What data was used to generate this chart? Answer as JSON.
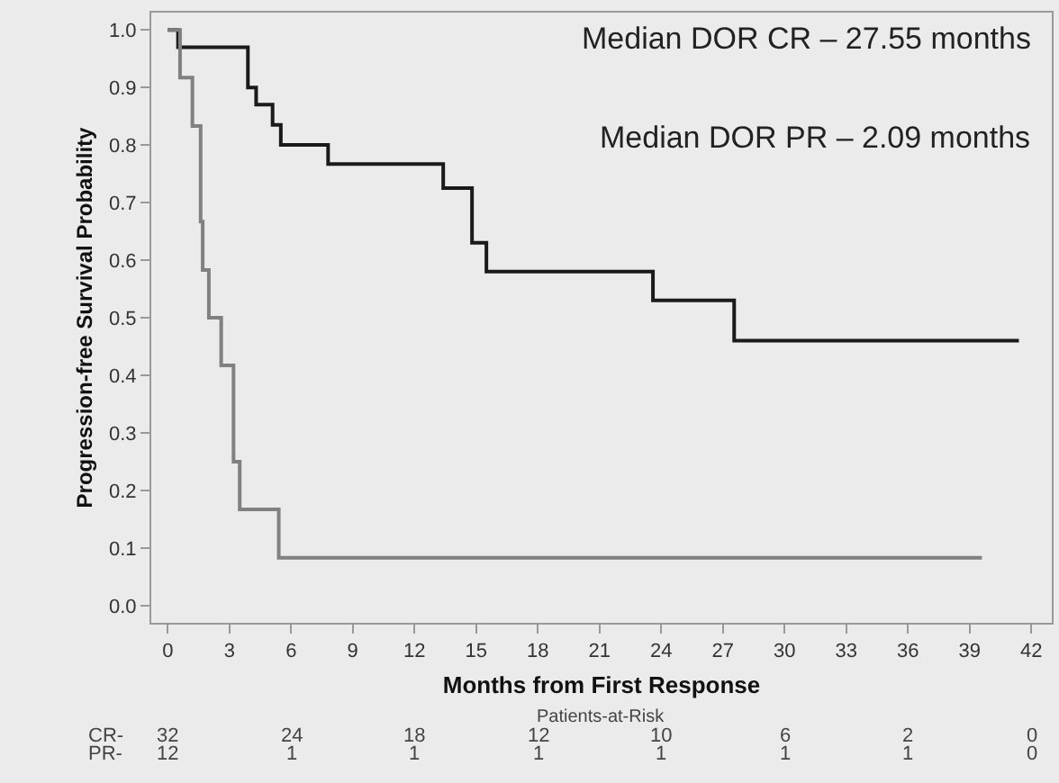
{
  "chart_data": {
    "type": "step",
    "xlabel": "Months from First Response",
    "ylabel": "Progression-free Survival Probability",
    "series": [
      {
        "color": "#1a1a1a",
        "x": [
          0,
          0.5,
          0.5,
          3.9,
          3.9,
          4.3,
          4.3,
          5.1,
          5.1,
          5.5,
          5.5,
          7.8,
          7.8,
          13.4,
          13.4,
          14.8,
          14.8,
          15.5,
          15.5,
          23.6,
          23.6,
          27.55,
          27.55,
          41.4
        ],
        "values": [
          1,
          1,
          0.97,
          0.97,
          0.9,
          0.9,
          0.87,
          0.87,
          0.835,
          0.835,
          0.8,
          0.8,
          0.767,
          0.767,
          0.725,
          0.725,
          0.63,
          0.63,
          0.58,
          0.58,
          0.53,
          0.53,
          0.46,
          0.46
        ]
      },
      {
        "color": "#808080",
        "x": [
          0,
          0.6,
          0.6,
          1.2,
          1.2,
          1.6,
          1.6,
          1.7,
          1.7,
          2.0,
          2.0,
          2.6,
          2.6,
          3.2,
          3.2,
          3.5,
          3.5,
          5.4,
          5.4,
          39.6
        ],
        "values": [
          1,
          1,
          0.917,
          0.917,
          0.833,
          0.833,
          0.667,
          0.667,
          0.583,
          0.583,
          0.5,
          0.5,
          0.417,
          0.417,
          0.25,
          0.25,
          0.167,
          0.167,
          0.083,
          0.083
        ]
      }
    ],
    "xlim": [
      -0.8,
      43
    ],
    "xticks": [
      0,
      3,
      6,
      9,
      12,
      15,
      18,
      21,
      24,
      27,
      30,
      33,
      36,
      39,
      42
    ],
    "ylim": [
      -0.03,
      1.03
    ],
    "yticks": [
      {
        "value": 0,
        "label": "0.0"
      },
      {
        "value": 0.1,
        "label": "0.1"
      },
      {
        "value": 0.2,
        "label": "0.2"
      },
      {
        "value": 0.3,
        "label": "0.3"
      },
      {
        "value": 0.4,
        "label": "0.4"
      },
      {
        "value": 0.5,
        "label": "0.5"
      },
      {
        "value": 0.6,
        "label": "0.6"
      },
      {
        "value": 0.7,
        "label": "0.7"
      },
      {
        "value": 0.8,
        "label": "0.8"
      },
      {
        "value": 0.9,
        "label": "0.9"
      },
      {
        "value": 1,
        "label": "1.0"
      }
    ],
    "grid": false,
    "marker": "none",
    "line_style": "solid",
    "annotations": [
      "Median DOR CR – 27.55 months",
      "Median DOR PR – 2.09 months",
      "Patients-at-Risk",
      "CR-",
      "32",
      "24",
      "18",
      "12",
      "10",
      "6",
      "2",
      "0",
      "PR-",
      "12",
      "1",
      "1",
      "1",
      "1",
      "1",
      "1",
      "0"
    ]
  }
}
